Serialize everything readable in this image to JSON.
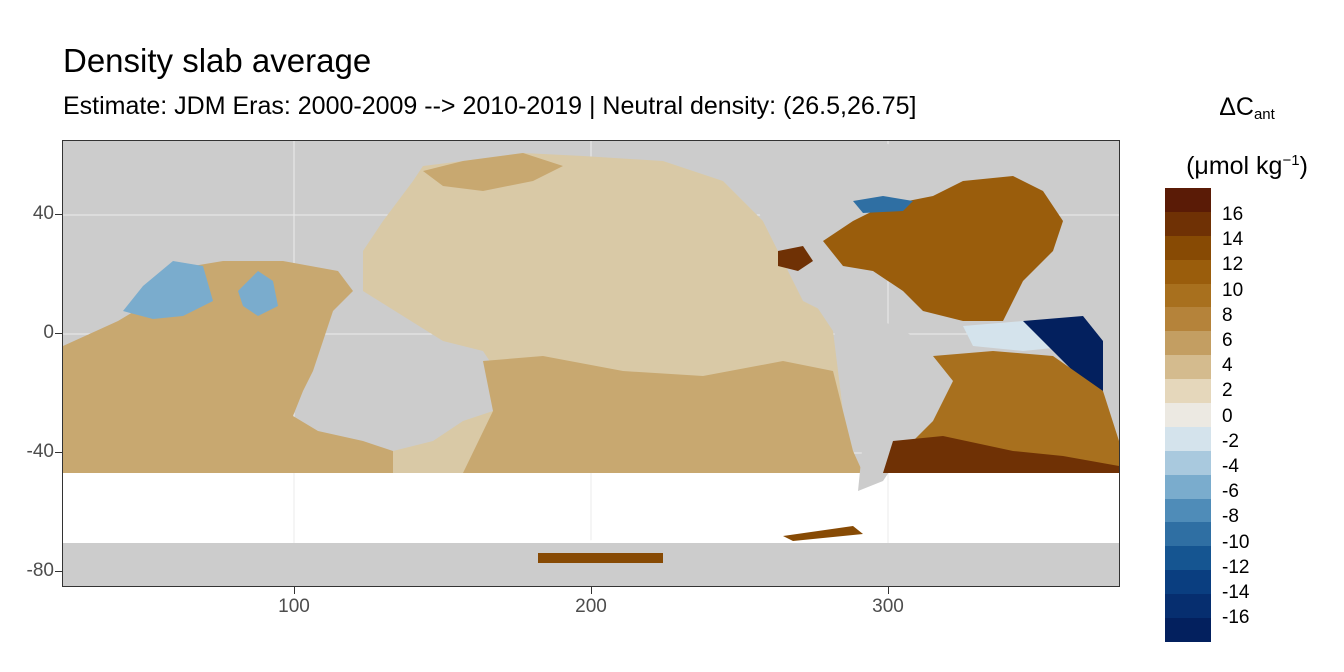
{
  "header": {
    "title": "Density slab average",
    "subtitle": "Estimate: JDM Eras: 2000-2009 --> 2010-2019 | Neutral density: (26.5,26.75]"
  },
  "axes": {
    "y_ticks": [
      "40",
      "0",
      "-40",
      "-80"
    ],
    "x_ticks": [
      "100",
      "200",
      "300"
    ]
  },
  "legend": {
    "symbol": "ΔC",
    "subscript": "ant",
    "unit_open": "(μmol kg",
    "unit_exp": "−1",
    "unit_close": ")",
    "labels": [
      "16",
      "14",
      "12",
      "10",
      "8",
      "6",
      "4",
      "2",
      "0",
      "-2",
      "-4",
      "-6",
      "-8",
      "-10",
      "-12",
      "-14",
      "-16"
    ],
    "colors": [
      "#5a1b06",
      "#6f3105",
      "#874a04",
      "#9a5d0c",
      "#a8701e",
      "#b5833a",
      "#c39e62",
      "#d4bb8e",
      "#e5d7bb",
      "#ece9e2",
      "#d4e3ec",
      "#a9c9de",
      "#7aaccd",
      "#4f8cb8",
      "#2f6fa3",
      "#155591",
      "#0a3e80",
      "#062e6f",
      "#03205e"
    ]
  },
  "map_colors": {
    "land": "#cccccc",
    "no_data": "#ffffff",
    "pacific": "#d9c9a6",
    "southern": "#c8a870",
    "atlantic_north": "#9a5d0c",
    "atlantic_south": "#a8701e",
    "negative": "#7aaccd",
    "strong_negative": "#03205e",
    "strong_positive": "#6f3105"
  }
}
